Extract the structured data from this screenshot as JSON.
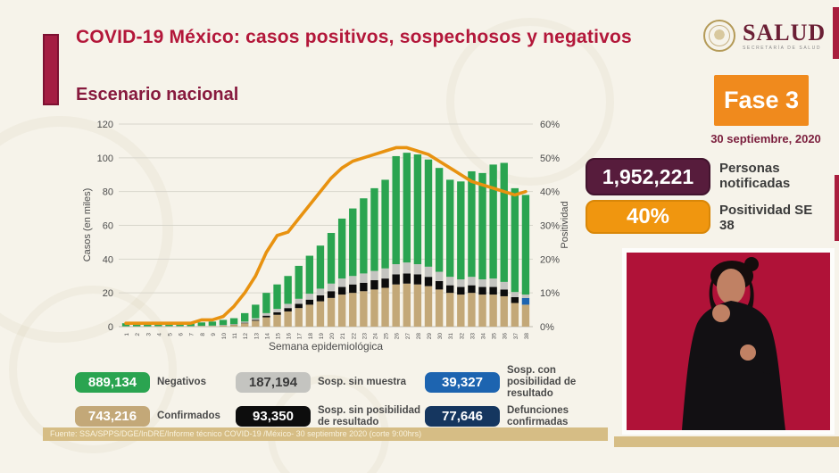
{
  "header": {
    "title": "COVID-19 México: casos positivos, sospechosos y negativos",
    "subtitle": "Escenario nacional",
    "logo": {
      "text": "SALUD",
      "subtext": "SECRETARÍA DE SALUD"
    }
  },
  "status": {
    "phase_label": "Fase 3",
    "date": "30 septiembre, 2020",
    "notified": {
      "value": "1,952,221",
      "label": "Personas notificadas"
    },
    "positivity": {
      "value": "40%",
      "label": "Positividad SE 38"
    }
  },
  "legend": [
    {
      "value": "889,134",
      "label": "Negativos",
      "color": "#2aa450",
      "text_color": "#ffffff"
    },
    {
      "value": "187,194",
      "label": "Sosp. sin muestra",
      "color": "#c4c4c0",
      "text_color": "#3a3a3a"
    },
    {
      "value": "39,327",
      "label": "Sosp. con posibilidad de resultado",
      "color": "#1d64b0",
      "text_color": "#ffffff"
    },
    {
      "value": "743,216",
      "label": "Confirmados",
      "color": "#c3a878",
      "text_color": "#ffffff"
    },
    {
      "value": "93,350",
      "label": "Sosp. sin posibilidad de resultado",
      "color": "#0d0d0d",
      "text_color": "#ffffff"
    },
    {
      "value": "77,646",
      "label": "Defunciones confirmadas",
      "color": "#15365f",
      "text_color": "#ffffff"
    }
  ],
  "source": "Fuente: SSA/SPPS/DGE/InDRE/Informe técnico COVID-19 /México- 30 septiembre 2020 (corte 9:00hrs)",
  "chart_data": {
    "type": "bar",
    "stacked": true,
    "title": "",
    "xlabel": "Semana epidemiológica",
    "ylabel_left": "Casos (en miles)",
    "ylabel_right": "Positividad",
    "ylim_left": [
      0,
      120
    ],
    "yticks_left": [
      0,
      20,
      40,
      60,
      80,
      100,
      120
    ],
    "yticks_right_pct": [
      0,
      10,
      20,
      30,
      40,
      50,
      60
    ],
    "grid": true,
    "legend_position": "bottom",
    "categories": [
      "1",
      "2",
      "3",
      "4",
      "5",
      "6",
      "7",
      "8",
      "9",
      "10",
      "11",
      "12",
      "13",
      "14",
      "15",
      "16",
      "17",
      "18",
      "19",
      "20",
      "21",
      "22",
      "23",
      "24",
      "25",
      "26",
      "27",
      "28",
      "29",
      "30",
      "31",
      "32",
      "33",
      "34",
      "35",
      "36",
      "37",
      "38"
    ],
    "series": [
      {
        "name": "Confirmados",
        "color": "#c3a878",
        "values": [
          0.1,
          0.1,
          0.1,
          0.2,
          0.2,
          0.2,
          0.2,
          0.3,
          0.4,
          0.6,
          1,
          2,
          3.5,
          5.5,
          7,
          9,
          11,
          13,
          15,
          17,
          19,
          20,
          21,
          22,
          23,
          25,
          25.5,
          25,
          24,
          22,
          20,
          19,
          20,
          19,
          19,
          18,
          14,
          13
        ]
      },
      {
        "name": "Sosp. sin posibilidad de resultado",
        "color": "#0d0d0d",
        "values": [
          0,
          0,
          0,
          0,
          0,
          0,
          0,
          0,
          0,
          0.1,
          0.2,
          0.3,
          0.5,
          1,
          1.5,
          2,
          2.5,
          3,
          3.5,
          4,
          4.5,
          5,
          5,
          5.5,
          5.5,
          6,
          6,
          6,
          5.5,
          5,
          4.5,
          4.5,
          4.5,
          4.5,
          4.5,
          4,
          3.5,
          0
        ]
      },
      {
        "name": "Sosp. con posibilidad de resultado",
        "color": "#1d64b0",
        "values": [
          0,
          0,
          0,
          0,
          0,
          0,
          0,
          0,
          0,
          0,
          0,
          0,
          0,
          0,
          0,
          0,
          0,
          0,
          0,
          0,
          0,
          0,
          0,
          0,
          0,
          0,
          0,
          0,
          0,
          0,
          0,
          0,
          0,
          0,
          0,
          0,
          0,
          4
        ]
      },
      {
        "name": "Sosp. sin muestra",
        "color": "#c4c4c0",
        "values": [
          0.1,
          0.1,
          0.1,
          0.1,
          0.1,
          0.1,
          0.1,
          0.2,
          0.2,
          0.3,
          0.3,
          0.7,
          1,
          1.5,
          2,
          2.5,
          3,
          3.5,
          4,
          4.5,
          5,
          5,
          5.5,
          5.5,
          6,
          6,
          6.5,
          6,
          6,
          5.5,
          5,
          4.5,
          5,
          4.5,
          5,
          4.5,
          3,
          2
        ]
      },
      {
        "name": "Negativos",
        "color": "#2aa450",
        "values": [
          1.8,
          1.8,
          2.3,
          2.2,
          2.2,
          2.2,
          2.2,
          2,
          2.4,
          3,
          3.5,
          5,
          8,
          12,
          14.5,
          16.5,
          19.5,
          22.5,
          25.5,
          30,
          35.5,
          40,
          44.5,
          49,
          52.5,
          64,
          65,
          65,
          63.5,
          61.5,
          57.5,
          58,
          62.5,
          63,
          67.5,
          70.5,
          61.5,
          59
        ]
      }
    ],
    "line": {
      "name": "Positividad (%)",
      "axis": "right",
      "color": "#e89210",
      "values": [
        1,
        1,
        1,
        1,
        1,
        1,
        1,
        2,
        2,
        3,
        6,
        10,
        15,
        22,
        27,
        28,
        32,
        36,
        40,
        44,
        47,
        49,
        50,
        51,
        52,
        53,
        53,
        52,
        51,
        49,
        47,
        45,
        43,
        42,
        41,
        40,
        39,
        40
      ]
    }
  }
}
